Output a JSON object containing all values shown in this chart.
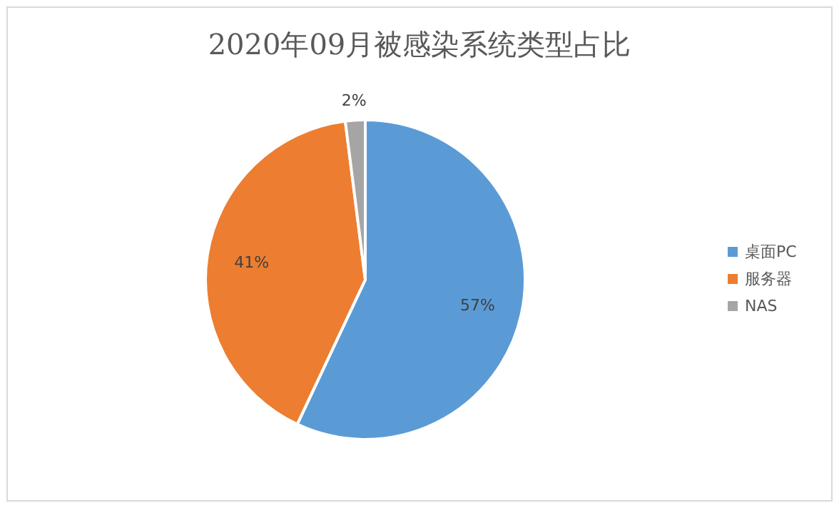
{
  "chart_data": {
    "type": "pie",
    "title": "2020年09月被感染系统类型占比",
    "categories": [
      "桌面PC",
      "服务器",
      "NAS"
    ],
    "values": [
      57,
      41,
      2
    ],
    "colors": [
      "#5b9bd5",
      "#ed7d31",
      "#a5a5a5"
    ],
    "value_labels": [
      "57%",
      "41%",
      "2%"
    ],
    "legend": "right"
  }
}
